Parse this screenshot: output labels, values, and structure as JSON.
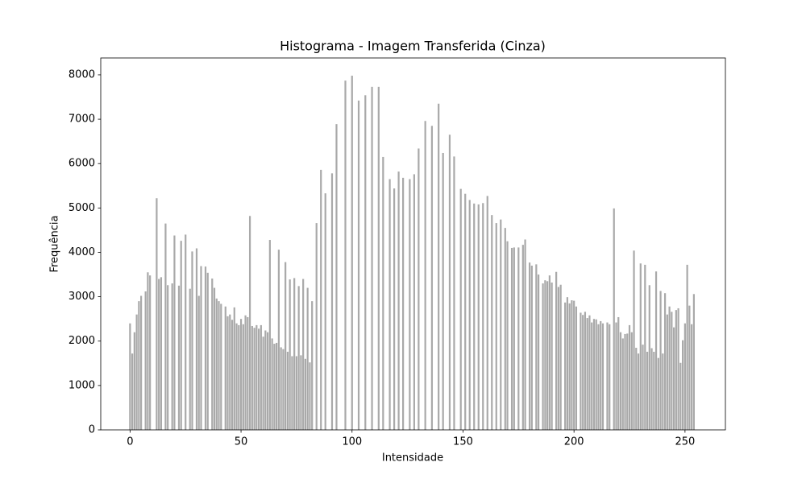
{
  "chart_data": {
    "type": "bar",
    "title": "Histograma - Imagem Transferida (Cinza)",
    "x_label": "Intensidade",
    "y_label": "Frequência",
    "color": "#a9a9a9",
    "bar_width": 0.8,
    "grid": false,
    "xlim": [
      -13.2,
      268.2
    ],
    "ylim": [
      0,
      8380
    ],
    "xticks": [
      0,
      50,
      100,
      150,
      200,
      250
    ],
    "yticks": [
      0,
      1000,
      2000,
      3000,
      4000,
      5000,
      6000,
      7000,
      8000
    ],
    "x": [
      0,
      1,
      2,
      3,
      4,
      5,
      6,
      7,
      8,
      9,
      10,
      11,
      12,
      13,
      14,
      15,
      16,
      17,
      18,
      19,
      20,
      21,
      22,
      23,
      24,
      25,
      26,
      27,
      28,
      29,
      30,
      31,
      32,
      33,
      34,
      35,
      36,
      37,
      38,
      39,
      40,
      41,
      42,
      43,
      44,
      45,
      46,
      47,
      48,
      49,
      50,
      51,
      52,
      53,
      54,
      55,
      56,
      57,
      58,
      59,
      60,
      61,
      62,
      63,
      64,
      65,
      66,
      67,
      68,
      69,
      70,
      71,
      72,
      73,
      74,
      75,
      76,
      77,
      78,
      79,
      80,
      81,
      82,
      83,
      84,
      85,
      86,
      87,
      88,
      89,
      90,
      91,
      92,
      93,
      94,
      95,
      96,
      97,
      98,
      99,
      100,
      101,
      102,
      103,
      104,
      105,
      106,
      107,
      108,
      109,
      110,
      111,
      112,
      113,
      114,
      115,
      116,
      117,
      118,
      119,
      120,
      121,
      122,
      123,
      124,
      125,
      126,
      127,
      128,
      129,
      130,
      131,
      132,
      133,
      134,
      135,
      136,
      137,
      138,
      139,
      140,
      141,
      142,
      143,
      144,
      145,
      146,
      147,
      148,
      149,
      150,
      151,
      152,
      153,
      154,
      155,
      156,
      157,
      158,
      159,
      160,
      161,
      162,
      163,
      164,
      165,
      166,
      167,
      168,
      169,
      170,
      171,
      172,
      173,
      174,
      175,
      176,
      177,
      178,
      179,
      180,
      181,
      182,
      183,
      184,
      185,
      186,
      187,
      188,
      189,
      190,
      191,
      192,
      193,
      194,
      195,
      196,
      197,
      198,
      199,
      200,
      201,
      202,
      203,
      204,
      205,
      206,
      207,
      208,
      209,
      210,
      211,
      212,
      213,
      214,
      215,
      216,
      217,
      218,
      219,
      220,
      221,
      222,
      223,
      224,
      225,
      226,
      227,
      228,
      229,
      230,
      231,
      232,
      233,
      234,
      235,
      236,
      237,
      238,
      239,
      240,
      241,
      242,
      243,
      244,
      245,
      246,
      247,
      248,
      249,
      250,
      251,
      252,
      253,
      254,
      255
    ],
    "values": [
      2400,
      1720,
      2200,
      2600,
      2900,
      3020,
      0,
      3120,
      3550,
      3480,
      0,
      0,
      5220,
      3400,
      3440,
      0,
      4650,
      3260,
      0,
      3300,
      4380,
      0,
      3250,
      4260,
      0,
      4400,
      0,
      3180,
      4020,
      0,
      4090,
      3020,
      3690,
      0,
      3680,
      3540,
      0,
      3410,
      3200,
      2960,
      2900,
      2840,
      0,
      2780,
      2560,
      2600,
      2480,
      2760,
      2400,
      2360,
      2500,
      2380,
      2580,
      2540,
      4820,
      2340,
      2300,
      2360,
      2280,
      2360,
      2100,
      2240,
      2200,
      4280,
      2060,
      1940,
      1960,
      4060,
      1860,
      1820,
      3780,
      1760,
      3390,
      1660,
      3420,
      1660,
      3240,
      1680,
      3400,
      1600,
      3200,
      1520,
      2900,
      0,
      4660,
      0,
      5860,
      0,
      5330,
      0,
      0,
      5780,
      0,
      6890,
      0,
      0,
      0,
      7870,
      0,
      0,
      7980,
      0,
      0,
      7420,
      0,
      0,
      7540,
      0,
      0,
      7730,
      0,
      0,
      7730,
      0,
      6150,
      0,
      0,
      5650,
      0,
      5440,
      0,
      5820,
      0,
      5680,
      0,
      0,
      5650,
      0,
      5760,
      0,
      6340,
      0,
      0,
      6960,
      0,
      0,
      6850,
      0,
      0,
      7350,
      0,
      6240,
      0,
      0,
      6650,
      0,
      6160,
      0,
      0,
      5430,
      0,
      5320,
      0,
      5180,
      0,
      5100,
      0,
      5080,
      0,
      5110,
      0,
      5270,
      0,
      4840,
      0,
      4660,
      0,
      4740,
      0,
      4550,
      4250,
      0,
      4100,
      4110,
      0,
      4110,
      0,
      4170,
      4290,
      0,
      3770,
      3700,
      0,
      3730,
      3500,
      0,
      3300,
      3370,
      3350,
      3480,
      3320,
      0,
      3560,
      3220,
      3270,
      0,
      2870,
      2990,
      2850,
      2920,
      2910,
      2780,
      0,
      2640,
      2590,
      2660,
      2520,
      2580,
      2420,
      2500,
      2490,
      2380,
      2450,
      2400,
      0,
      2420,
      2380,
      0,
      4990,
      2420,
      2540,
      2200,
      2060,
      2160,
      2170,
      2360,
      2200,
      4040,
      1850,
      1720,
      3750,
      1920,
      3720,
      1760,
      3260,
      1840,
      1760,
      3570,
      1620,
      3130,
      1720,
      3080,
      2600,
      2780,
      2660,
      2310,
      2700,
      2740,
      1510,
      2020,
      2400,
      3720,
      2800,
      2380,
      3060,
      0
    ]
  }
}
